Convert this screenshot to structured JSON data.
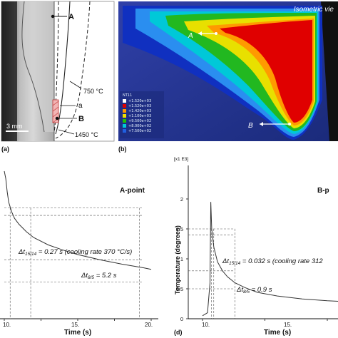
{
  "figure": {
    "panel_a": {
      "label": "(a)",
      "scale_bar": "3 mm",
      "markers": [
        "A",
        "a",
        "B"
      ],
      "isotherms": [
        "750 °C",
        "1450 °C"
      ]
    },
    "panel_b": {
      "label": "(b)",
      "view_title": "Isometric vie",
      "markers": [
        "A",
        "B"
      ],
      "legend": {
        "title": "NT11",
        "entries": [
          {
            "value": "+1.520e+03",
            "color": "#ffffff"
          },
          {
            "value": "+1.520e+03",
            "color": "#e00000"
          },
          {
            "value": "+1.420e+03",
            "color": "#ff9a00"
          },
          {
            "value": "+1.100e+03",
            "color": "#f0e000"
          },
          {
            "value": "+9.500e+02",
            "color": "#22c000"
          },
          {
            "value": "+8.000e+02",
            "color": "#00c8d8"
          },
          {
            "value": "+7.500e+02",
            "color": "#2060e0"
          }
        ]
      }
    },
    "panel_c": {
      "title": "A-point",
      "xlabel": "Time (s)",
      "x_ticks": [
        "10.",
        "15.",
        "20."
      ],
      "annotations": {
        "dt1514": "Δt",
        "dt1514_sub": "15/14",
        "dt1514_rest": " = 0.27 s (cooling rate 370 °C/s)",
        "dt85": "Δt",
        "dt85_sub": "8/5",
        "dt85_rest": " = 5.2 s"
      }
    },
    "panel_d": {
      "label": "(d)",
      "title": "B-p",
      "y_multiplier": "[x1 E3]",
      "ylabel": "Temperature (degrees)",
      "xlabel": "Time (s)",
      "y_ticks": [
        "0",
        "0.5",
        "1",
        "1.5",
        "2"
      ],
      "x_ticks": [
        "10.",
        "15."
      ],
      "annotations": {
        "dt1514": "Δt",
        "dt1514_sub": "15/14",
        "dt1514_rest": " = 0.032 s (cooling rate 312",
        "dt85": "Δt",
        "dt85_sub": "8/5",
        "dt85_rest": " = 0.9 s"
      }
    }
  },
  "chart_data": [
    {
      "type": "line",
      "title": "A-point",
      "xlabel": "Time (s)",
      "ylabel": "",
      "xlim": [
        10,
        20
      ],
      "ylim": [
        0,
        2
      ],
      "series": [
        {
          "x": [
            10.0,
            10.1,
            10.2,
            10.3,
            10.5,
            10.7,
            11.0,
            11.5,
            12.0,
            13.0,
            14.0,
            15.0,
            16.5,
            18.0,
            19.5,
            20.0
          ],
          "y": [
            2.0,
            1.9,
            1.72,
            1.58,
            1.45,
            1.36,
            1.28,
            1.18,
            1.1,
            1.0,
            0.93,
            0.87,
            0.8,
            0.74,
            0.69,
            0.67
          ]
        }
      ],
      "grid": false
    },
    {
      "type": "line",
      "title": "B-p",
      "xlabel": "Time (s)",
      "ylabel": "Temperature (degrees)",
      "xlim": [
        10,
        16
      ],
      "ylim": [
        0,
        2
      ],
      "series": [
        {
          "x": [
            10.0,
            10.2,
            10.3,
            10.33,
            10.37,
            10.45,
            10.6,
            10.8,
            11.0,
            11.3,
            11.7,
            12.2,
            13.0,
            14.0,
            15.0,
            16.0
          ],
          "y": [
            0.05,
            0.1,
            0.6,
            1.95,
            1.5,
            1.2,
            0.95,
            0.8,
            0.7,
            0.6,
            0.52,
            0.44,
            0.38,
            0.33,
            0.3,
            0.28
          ]
        }
      ],
      "grid": false
    }
  ]
}
